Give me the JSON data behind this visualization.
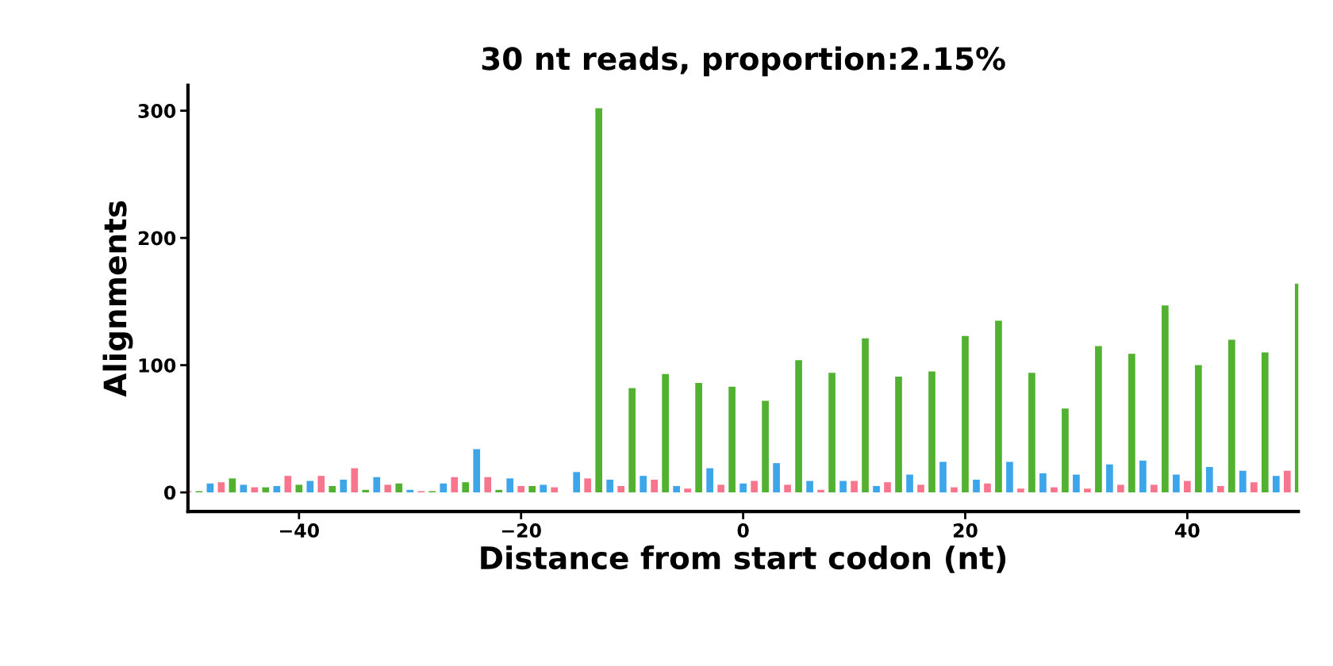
{
  "chart_data": {
    "type": "bar",
    "title": "30 nt reads, proportion:2.15%",
    "xlabel": "Distance from start codon (nt)",
    "ylabel": "Alignments",
    "x": [
      -50,
      -49,
      -48,
      -47,
      -46,
      -45,
      -44,
      -43,
      -42,
      -41,
      -40,
      -39,
      -38,
      -37,
      -36,
      -35,
      -34,
      -33,
      -32,
      -31,
      -30,
      -29,
      -28,
      -27,
      -26,
      -25,
      -24,
      -23,
      -22,
      -21,
      -20,
      -19,
      -18,
      -17,
      -16,
      -15,
      -14,
      -13,
      -12,
      -11,
      -10,
      -9,
      -8,
      -7,
      -6,
      -5,
      -4,
      -3,
      -2,
      -1,
      0,
      1,
      2,
      3,
      4,
      5,
      6,
      7,
      8,
      9,
      10,
      11,
      12,
      13,
      14,
      15,
      16,
      17,
      18,
      19,
      20,
      21,
      22,
      23,
      24,
      25,
      26,
      27,
      28,
      29,
      30,
      31,
      32,
      33,
      34,
      35,
      36,
      37,
      38,
      39,
      40,
      41,
      42,
      43,
      44,
      45,
      46,
      47,
      48,
      49,
      50
    ],
    "series": [
      {
        "values": [
          1,
          1,
          7,
          8,
          11,
          6,
          4,
          4,
          5,
          13,
          6,
          9,
          13,
          5,
          10,
          19,
          2,
          12,
          6,
          7,
          2,
          1,
          1,
          7,
          12,
          8,
          34,
          12,
          2,
          11,
          5,
          5,
          6,
          4,
          0,
          16,
          11,
          302,
          10,
          5,
          82,
          13,
          10,
          93,
          5,
          3,
          86,
          19,
          6,
          83,
          7,
          9,
          72,
          23,
          6,
          104,
          9,
          2,
          94,
          9,
          9,
          121,
          5,
          8,
          91,
          14,
          6,
          95,
          24,
          4,
          123,
          10,
          7,
          135,
          24,
          3,
          94,
          15,
          4,
          66,
          14,
          3,
          115,
          22,
          6,
          109,
          25,
          6,
          147,
          14,
          9,
          100,
          20,
          5,
          120,
          17,
          8,
          110,
          13,
          17,
          164
        ],
        "colors": [
          "#f8768d",
          "#52b130",
          "#3da5ea",
          "#f8768d",
          "#52b130",
          "#3da5ea",
          "#f8768d",
          "#52b130",
          "#3da5ea",
          "#f8768d",
          "#52b130",
          "#3da5ea",
          "#f8768d",
          "#52b130",
          "#3da5ea",
          "#f8768d",
          "#52b130",
          "#3da5ea",
          "#f8768d",
          "#52b130",
          "#3da5ea",
          "#f8768d",
          "#52b130",
          "#3da5ea",
          "#f8768d",
          "#52b130",
          "#3da5ea",
          "#f8768d",
          "#52b130",
          "#3da5ea",
          "#f8768d",
          "#52b130",
          "#3da5ea",
          "#f8768d",
          "#52b130",
          "#3da5ea",
          "#f8768d",
          "#52b130",
          "#3da5ea",
          "#f8768d",
          "#52b130",
          "#3da5ea",
          "#f8768d",
          "#52b130",
          "#3da5ea",
          "#f8768d",
          "#52b130",
          "#3da5ea",
          "#f8768d",
          "#52b130",
          "#3da5ea",
          "#f8768d",
          "#52b130",
          "#3da5ea",
          "#f8768d",
          "#52b130",
          "#3da5ea",
          "#f8768d",
          "#52b130",
          "#3da5ea",
          "#f8768d",
          "#52b130",
          "#3da5ea",
          "#f8768d",
          "#52b130",
          "#3da5ea",
          "#f8768d",
          "#52b130",
          "#3da5ea",
          "#f8768d",
          "#52b130",
          "#3da5ea",
          "#f8768d",
          "#52b130",
          "#3da5ea",
          "#f8768d",
          "#52b130",
          "#3da5ea",
          "#f8768d",
          "#52b130",
          "#3da5ea",
          "#f8768d",
          "#52b130",
          "#3da5ea",
          "#f8768d",
          "#52b130",
          "#3da5ea",
          "#f8768d",
          "#52b130",
          "#3da5ea",
          "#f8768d",
          "#52b130",
          "#3da5ea",
          "#f8768d",
          "#52b130",
          "#3da5ea",
          "#f8768d",
          "#52b130",
          "#3da5ea",
          "#f8768d",
          "#52b130"
        ]
      }
    ],
    "xlim": [
      -50,
      50
    ],
    "xticks": [
      {
        "value": -40,
        "label": "−40"
      },
      {
        "value": -20,
        "label": "−20"
      },
      0,
      20,
      40
    ],
    "ylim": [
      -15,
      320
    ],
    "yticks": [
      0,
      100,
      200,
      300
    ],
    "grid": false
  }
}
